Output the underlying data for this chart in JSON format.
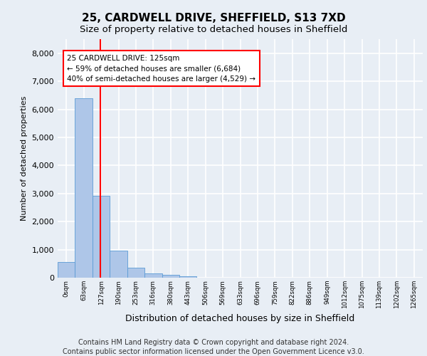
{
  "title_line1": "25, CARDWELL DRIVE, SHEFFIELD, S13 7XD",
  "title_line2": "Size of property relative to detached houses in Sheffield",
  "xlabel": "Distribution of detached houses by size in Sheffield",
  "ylabel": "Number of detached properties",
  "bar_labels": [
    "0sqm",
    "63sqm",
    "127sqm",
    "190sqm",
    "253sqm",
    "316sqm",
    "380sqm",
    "443sqm",
    "506sqm",
    "569sqm",
    "633sqm",
    "696sqm",
    "759sqm",
    "822sqm",
    "886sqm",
    "949sqm",
    "1012sqm",
    "1075sqm",
    "1139sqm",
    "1202sqm",
    "1265sqm"
  ],
  "bar_values": [
    570,
    6400,
    2910,
    970,
    350,
    155,
    90,
    55,
    0,
    0,
    0,
    0,
    0,
    0,
    0,
    0,
    0,
    0,
    0,
    0,
    0
  ],
  "bar_color": "#aec6e8",
  "bar_edge_color": "#5b9bd5",
  "annotation_box_text": "25 CARDWELL DRIVE: 125sqm\n← 59% of detached houses are smaller (6,684)\n40% of semi-detached houses are larger (4,529) →",
  "annotation_box_color": "red",
  "annotation_box_fill": "white",
  "vline_x": 1.97,
  "ylim": [
    0,
    8500
  ],
  "yticks": [
    0,
    1000,
    2000,
    3000,
    4000,
    5000,
    6000,
    7000,
    8000
  ],
  "footnote_line1": "Contains HM Land Registry data © Crown copyright and database right 2024.",
  "footnote_line2": "Contains public sector information licensed under the Open Government Licence v3.0.",
  "background_color": "#e8eef5",
  "plot_bg_color": "#e8eef5",
  "grid_color": "white",
  "title_fontsize": 11,
  "subtitle_fontsize": 9.5,
  "annotation_fontsize": 7.5,
  "footnote_fontsize": 7,
  "ylabel_fontsize": 8,
  "xlabel_fontsize": 9
}
